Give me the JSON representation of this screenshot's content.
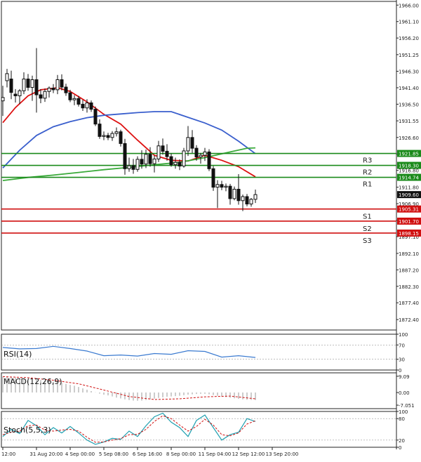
{
  "chart_data": {
    "type": "candlestick",
    "title": "",
    "xlabel": "",
    "ylabel": "",
    "price_axis": {
      "ylim": [
        1869.3,
        1967.1
      ],
      "ticks": [
        "1966.00",
        "1961.10",
        "1956.20",
        "1951.25",
        "1946.30",
        "1941.40",
        "1936.50",
        "1931.55",
        "1926.60",
        "1921.70",
        "1916.80",
        "1911.80",
        "1906.90",
        "1901.95",
        "1897.10",
        "1892.10",
        "1887.20",
        "1882.30",
        "1877.40",
        "1872.40"
      ]
    },
    "time_axis": {
      "labels": [
        "12:00",
        "31 Aug 20:00",
        "4 Sep 00:00",
        "5 Sep 08:00",
        "6 Sep 16:00",
        "8 Sep 00:00",
        "11 Sep 04:00",
        "12 Sep 12:00",
        "13 Sep 20:00"
      ],
      "label_bar_index": [
        0,
        8,
        16,
        24,
        32,
        40,
        48,
        56,
        64
      ]
    },
    "levels": [
      {
        "name": "R3",
        "value": 1921.85,
        "label": "1921.85",
        "color": "#1a8a1a"
      },
      {
        "name": "R2",
        "value": 1918.3,
        "label": "1918.30",
        "color": "#1a8a1a"
      },
      {
        "name": "R1",
        "value": 1914.74,
        "label": "1914.74",
        "color": "#1a8a1a"
      },
      {
        "name": "S1",
        "value": 1905.31,
        "label": "1905.31",
        "color": "#d01010"
      },
      {
        "name": "S2",
        "value": 1901.7,
        "label": "1901.70",
        "color": "#d01010"
      },
      {
        "name": "S3",
        "value": 1898.15,
        "label": "1898.15",
        "color": "#d01010"
      }
    ],
    "last_price": {
      "value": 1909.6,
      "label": "1909.60"
    },
    "candles": [
      {
        "o": 1937.5,
        "h": 1942.0,
        "l": 1933.0,
        "c": 1938.5
      },
      {
        "o": 1943.5,
        "h": 1947.0,
        "l": 1941.5,
        "c": 1945.6
      },
      {
        "o": 1944.0,
        "h": 1946.5,
        "l": 1938.0,
        "c": 1940.0
      },
      {
        "o": 1939.5,
        "h": 1941.0,
        "l": 1937.0,
        "c": 1939.0
      },
      {
        "o": 1939.0,
        "h": 1941.0,
        "l": 1936.5,
        "c": 1940.5
      },
      {
        "o": 1940.5,
        "h": 1946.0,
        "l": 1939.5,
        "c": 1944.0
      },
      {
        "o": 1944.0,
        "h": 1945.5,
        "l": 1940.5,
        "c": 1941.5
      },
      {
        "o": 1941.5,
        "h": 1945.0,
        "l": 1937.5,
        "c": 1943.8
      },
      {
        "o": 1943.8,
        "h": 1953.2,
        "l": 1934.0,
        "c": 1939.3
      },
      {
        "o": 1939.3,
        "h": 1941.0,
        "l": 1936.8,
        "c": 1938.3
      },
      {
        "o": 1938.3,
        "h": 1941.2,
        "l": 1937.2,
        "c": 1940.3
      },
      {
        "o": 1940.3,
        "h": 1941.8,
        "l": 1938.5,
        "c": 1941.3
      },
      {
        "o": 1941.3,
        "h": 1942.5,
        "l": 1939.8,
        "c": 1940.8
      },
      {
        "o": 1940.8,
        "h": 1945.2,
        "l": 1939.5,
        "c": 1943.8
      },
      {
        "o": 1943.8,
        "h": 1945.4,
        "l": 1940.6,
        "c": 1941.6
      },
      {
        "o": 1941.6,
        "h": 1942.6,
        "l": 1939.0,
        "c": 1939.9
      },
      {
        "o": 1939.9,
        "h": 1940.8,
        "l": 1937.1,
        "c": 1937.8
      },
      {
        "o": 1937.8,
        "h": 1939.2,
        "l": 1936.2,
        "c": 1938.2
      },
      {
        "o": 1938.2,
        "h": 1939.0,
        "l": 1935.8,
        "c": 1936.5
      },
      {
        "o": 1936.5,
        "h": 1937.8,
        "l": 1934.5,
        "c": 1935.4
      },
      {
        "o": 1935.4,
        "h": 1938.0,
        "l": 1934.0,
        "c": 1936.9
      },
      {
        "o": 1936.9,
        "h": 1937.6,
        "l": 1934.2,
        "c": 1935.0
      },
      {
        "o": 1935.0,
        "h": 1935.8,
        "l": 1930.0,
        "c": 1930.6
      },
      {
        "o": 1930.6,
        "h": 1932.0,
        "l": 1926.2,
        "c": 1926.9
      },
      {
        "o": 1926.9,
        "h": 1928.4,
        "l": 1925.8,
        "c": 1927.2
      },
      {
        "o": 1927.2,
        "h": 1928.0,
        "l": 1925.8,
        "c": 1926.6
      },
      {
        "o": 1926.6,
        "h": 1928.5,
        "l": 1925.6,
        "c": 1927.8
      },
      {
        "o": 1927.8,
        "h": 1929.6,
        "l": 1926.9,
        "c": 1928.3
      },
      {
        "o": 1928.3,
        "h": 1928.9,
        "l": 1923.9,
        "c": 1924.8
      },
      {
        "o": 1924.8,
        "h": 1926.2,
        "l": 1915.5,
        "c": 1917.3
      },
      {
        "o": 1917.3,
        "h": 1920.6,
        "l": 1916.4,
        "c": 1918.2
      },
      {
        "o": 1918.2,
        "h": 1920.2,
        "l": 1915.8,
        "c": 1917.1
      },
      {
        "o": 1917.1,
        "h": 1921.0,
        "l": 1916.4,
        "c": 1920.1
      },
      {
        "o": 1920.1,
        "h": 1922.8,
        "l": 1917.3,
        "c": 1918.7
      },
      {
        "o": 1918.7,
        "h": 1923.0,
        "l": 1917.5,
        "c": 1921.6
      },
      {
        "o": 1921.6,
        "h": 1923.7,
        "l": 1917.9,
        "c": 1918.8
      },
      {
        "o": 1918.8,
        "h": 1921.2,
        "l": 1916.2,
        "c": 1920.2
      },
      {
        "o": 1920.2,
        "h": 1925.6,
        "l": 1919.3,
        "c": 1924.1
      },
      {
        "o": 1924.1,
        "h": 1926.3,
        "l": 1921.5,
        "c": 1922.5
      },
      {
        "o": 1922.5,
        "h": 1924.6,
        "l": 1919.7,
        "c": 1920.9
      },
      {
        "o": 1920.9,
        "h": 1921.8,
        "l": 1917.9,
        "c": 1918.5
      },
      {
        "o": 1918.5,
        "h": 1920.6,
        "l": 1917.3,
        "c": 1919.2
      },
      {
        "o": 1919.2,
        "h": 1920.1,
        "l": 1916.9,
        "c": 1918.1
      },
      {
        "o": 1918.1,
        "h": 1923.5,
        "l": 1917.6,
        "c": 1922.6
      },
      {
        "o": 1922.6,
        "h": 1930.0,
        "l": 1921.1,
        "c": 1926.6
      },
      {
        "o": 1926.6,
        "h": 1928.8,
        "l": 1922.0,
        "c": 1923.4
      },
      {
        "o": 1923.4,
        "h": 1924.3,
        "l": 1919.7,
        "c": 1920.8
      },
      {
        "o": 1920.8,
        "h": 1922.0,
        "l": 1918.8,
        "c": 1921.3
      },
      {
        "o": 1921.3,
        "h": 1923.5,
        "l": 1919.6,
        "c": 1922.3
      },
      {
        "o": 1922.3,
        "h": 1923.1,
        "l": 1916.6,
        "c": 1917.3
      },
      {
        "o": 1917.3,
        "h": 1918.1,
        "l": 1910.7,
        "c": 1911.8
      },
      {
        "o": 1911.8,
        "h": 1913.9,
        "l": 1905.6,
        "c": 1912.6
      },
      {
        "o": 1912.6,
        "h": 1913.7,
        "l": 1910.9,
        "c": 1911.8
      },
      {
        "o": 1911.8,
        "h": 1912.9,
        "l": 1910.6,
        "c": 1912.1
      },
      {
        "o": 1912.1,
        "h": 1912.8,
        "l": 1906.6,
        "c": 1908.4
      },
      {
        "o": 1908.4,
        "h": 1912.0,
        "l": 1907.9,
        "c": 1911.2
      },
      {
        "o": 1911.2,
        "h": 1915.7,
        "l": 1906.6,
        "c": 1907.8
      },
      {
        "o": 1907.8,
        "h": 1909.6,
        "l": 1904.7,
        "c": 1909.0
      },
      {
        "o": 1909.0,
        "h": 1909.8,
        "l": 1906.1,
        "c": 1906.8
      },
      {
        "o": 1906.8,
        "h": 1908.6,
        "l": 1906.0,
        "c": 1908.2
      },
      {
        "o": 1908.2,
        "h": 1911.1,
        "l": 1907.1,
        "c": 1909.6
      }
    ],
    "overlays": [
      {
        "color": "#dd1111",
        "points": [
          [
            0,
            1931.0
          ],
          [
            3,
            1935.5
          ],
          [
            6,
            1939.0
          ],
          [
            9,
            1940.8
          ],
          [
            13,
            1941.4
          ],
          [
            16,
            1940.3
          ],
          [
            20,
            1937.2
          ],
          [
            24,
            1933.5
          ],
          [
            28,
            1930.6
          ],
          [
            32,
            1925.8
          ],
          [
            36,
            1921.3
          ],
          [
            40,
            1919.8
          ],
          [
            44,
            1919.6
          ],
          [
            48,
            1921.3
          ],
          [
            52,
            1919.8
          ],
          [
            56,
            1917.9
          ],
          [
            60,
            1914.9
          ]
        ]
      },
      {
        "color": "#3a5fcd",
        "points": [
          [
            0,
            1917.5
          ],
          [
            4,
            1922.8
          ],
          [
            8,
            1927.2
          ],
          [
            12,
            1929.8
          ],
          [
            16,
            1931.3
          ],
          [
            20,
            1932.5
          ],
          [
            24,
            1933.2
          ],
          [
            28,
            1933.6
          ],
          [
            32,
            1934.0
          ],
          [
            36,
            1934.3
          ],
          [
            40,
            1934.3
          ],
          [
            44,
            1932.6
          ],
          [
            48,
            1930.9
          ],
          [
            52,
            1928.8
          ],
          [
            56,
            1925.5
          ],
          [
            60,
            1921.8
          ]
        ]
      },
      {
        "color": "#3aaa3a",
        "points": [
          [
            0,
            1913.8
          ],
          [
            6,
            1914.7
          ],
          [
            12,
            1915.4
          ],
          [
            18,
            1916.2
          ],
          [
            24,
            1917.0
          ],
          [
            30,
            1917.7
          ],
          [
            36,
            1918.5
          ],
          [
            42,
            1919.2
          ],
          [
            48,
            1920.6
          ],
          [
            54,
            1922.3
          ],
          [
            58,
            1923.4
          ],
          [
            60,
            1923.5
          ]
        ]
      }
    ],
    "rsi": {
      "label": "RSI(14)",
      "ticks": [
        "100",
        "70",
        "30",
        "0"
      ],
      "ylim": [
        0,
        100
      ],
      "points": [
        [
          0,
          63
        ],
        [
          4,
          59
        ],
        [
          8,
          60
        ],
        [
          12,
          66
        ],
        [
          16,
          60
        ],
        [
          20,
          53
        ],
        [
          24,
          40
        ],
        [
          28,
          42
        ],
        [
          32,
          39
        ],
        [
          36,
          46
        ],
        [
          40,
          44
        ],
        [
          44,
          54
        ],
        [
          48,
          52
        ],
        [
          52,
          36
        ],
        [
          56,
          40
        ],
        [
          60,
          35
        ]
      ]
    },
    "macd": {
      "label": "MACD(12,26,9)",
      "ticks": [
        "9.09",
        "0.00",
        "-7.051"
      ],
      "ylim": [
        -9,
        11
      ],
      "hist": [
        8.8,
        8.8,
        8.6,
        8.4,
        8.3,
        8.1,
        7.9,
        7.6,
        7.3,
        7.0,
        6.7,
        6.4,
        6.1,
        5.7,
        5.3,
        4.8,
        4.3,
        3.8,
        3.1,
        2.3,
        1.6,
        0.8,
        0.1,
        -0.6,
        -1.2,
        -1.6,
        -2.2,
        -2.8,
        -3.3,
        -3.8,
        -4.2,
        -4.5,
        -4.6,
        -4.5,
        -4.2,
        -3.8,
        -3.4,
        -3.0,
        -2.7,
        -2.4,
        -2.2,
        -2.0,
        -1.8,
        -1.5,
        -1.2,
        -1.0,
        -0.8,
        -0.7,
        -0.7,
        -1.0,
        -1.4,
        -1.8,
        -2.2,
        -2.6,
        -2.9,
        -3.2,
        -3.5,
        -3.8,
        -4.0,
        -4.1,
        -4.2
      ],
      "signal": [
        [
          0,
          8.9
        ],
        [
          6,
          8.3
        ],
        [
          12,
          6.9
        ],
        [
          18,
          4.9
        ],
        [
          24,
          1.4
        ],
        [
          30,
          -2.2
        ],
        [
          36,
          -3.9
        ],
        [
          42,
          -3.5
        ],
        [
          48,
          -2.4
        ],
        [
          54,
          -2.0
        ],
        [
          60,
          -3.5
        ]
      ]
    },
    "stoch": {
      "label": "Stoch(5,5,3)",
      "ticks": [
        "100",
        "80",
        "20",
        "0"
      ],
      "ylim": [
        0,
        100
      ],
      "k": [
        [
          0,
          30
        ],
        [
          2,
          50
        ],
        [
          4,
          38
        ],
        [
          6,
          75
        ],
        [
          8,
          60
        ],
        [
          10,
          35
        ],
        [
          12,
          55
        ],
        [
          14,
          40
        ],
        [
          16,
          58
        ],
        [
          18,
          40
        ],
        [
          20,
          20
        ],
        [
          22,
          8
        ],
        [
          24,
          15
        ],
        [
          26,
          25
        ],
        [
          28,
          22
        ],
        [
          30,
          45
        ],
        [
          32,
          30
        ],
        [
          34,
          60
        ],
        [
          36,
          85
        ],
        [
          38,
          95
        ],
        [
          40,
          70
        ],
        [
          42,
          55
        ],
        [
          44,
          30
        ],
        [
          46,
          75
        ],
        [
          48,
          90
        ],
        [
          50,
          55
        ],
        [
          52,
          20
        ],
        [
          54,
          35
        ],
        [
          56,
          42
        ],
        [
          58,
          80
        ],
        [
          60,
          72
        ]
      ],
      "d": [
        [
          0,
          35
        ],
        [
          2,
          42
        ],
        [
          4,
          45
        ],
        [
          6,
          60
        ],
        [
          8,
          62
        ],
        [
          10,
          48
        ],
        [
          12,
          45
        ],
        [
          14,
          48
        ],
        [
          16,
          50
        ],
        [
          18,
          45
        ],
        [
          20,
          28
        ],
        [
          22,
          14
        ],
        [
          24,
          15
        ],
        [
          26,
          20
        ],
        [
          28,
          24
        ],
        [
          30,
          35
        ],
        [
          32,
          36
        ],
        [
          34,
          50
        ],
        [
          36,
          72
        ],
        [
          38,
          88
        ],
        [
          40,
          80
        ],
        [
          42,
          62
        ],
        [
          44,
          45
        ],
        [
          46,
          58
        ],
        [
          48,
          78
        ],
        [
          50,
          62
        ],
        [
          52,
          35
        ],
        [
          54,
          32
        ],
        [
          56,
          40
        ],
        [
          58,
          65
        ],
        [
          60,
          74
        ]
      ]
    }
  }
}
